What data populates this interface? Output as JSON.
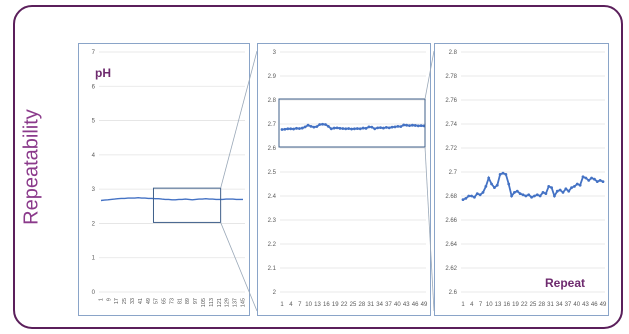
{
  "side_title": "Repeatability",
  "colors": {
    "frame": "#5b1f5b",
    "side_title": "#8b3a8b",
    "line": "#4472c4",
    "panel_border": "#8aa4c8",
    "grid": "#e3e3e3",
    "tick": "#595959",
    "label": "#6e2a6e"
  },
  "chart_data": [
    {
      "type": "line",
      "label": "pH",
      "ylim": [
        0,
        7
      ],
      "yticks": [
        "0",
        "1",
        "2",
        "3",
        "4",
        "5",
        "6",
        "7"
      ],
      "x_tick_labels": [
        "1",
        "9",
        "17",
        "25",
        "33",
        "41",
        "49",
        "57",
        "65",
        "73",
        "81",
        "89",
        "97",
        "105",
        "113",
        "121",
        "129",
        "137",
        "145"
      ],
      "grid": true,
      "series": [
        {
          "values": [
            2.67,
            2.68,
            2.69,
            2.7,
            2.71,
            2.72,
            2.73,
            2.73,
            2.74,
            2.74,
            2.74,
            2.75,
            2.74,
            2.74,
            2.73,
            2.73,
            2.72,
            2.72,
            2.71,
            2.7,
            2.7,
            2.69,
            2.69,
            2.7,
            2.7,
            2.71,
            2.7,
            2.69,
            2.7,
            2.71,
            2.71,
            2.72,
            2.71,
            2.71,
            2.7,
            2.7,
            2.7,
            2.71,
            2.71,
            2.71,
            2.7,
            2.7,
            2.7
          ]
        }
      ]
    },
    {
      "type": "line",
      "ylim": [
        2,
        3
      ],
      "yticks": [
        "2",
        "2.1",
        "2.2",
        "2.3",
        "2.4",
        "2.5",
        "2.6",
        "2.7",
        "2.8",
        "2.9",
        "3"
      ],
      "x_tick_labels": [
        "1",
        "4",
        "7",
        "10",
        "13",
        "16",
        "19",
        "22",
        "25",
        "28",
        "31",
        "34",
        "37",
        "40",
        "43",
        "46",
        "49"
      ],
      "grid": true,
      "series": [
        {
          "values": [
            2.677,
            2.678,
            2.68,
            2.68,
            2.679,
            2.682,
            2.681,
            2.683,
            2.688,
            2.695,
            2.69,
            2.687,
            2.689,
            2.698,
            2.699,
            2.698,
            2.69,
            2.68,
            2.683,
            2.684,
            2.682,
            2.681,
            2.68,
            2.681,
            2.679,
            2.68,
            2.681,
            2.68,
            2.683,
            2.682,
            2.688,
            2.687,
            2.68,
            2.684,
            2.685,
            2.683,
            2.686,
            2.684,
            2.687,
            2.688,
            2.69,
            2.689,
            2.696,
            2.695,
            2.693,
            2.695,
            2.694,
            2.692,
            2.693,
            2.692
          ]
        }
      ]
    },
    {
      "type": "line",
      "label": "Repeat",
      "ylim": [
        2.6,
        2.8
      ],
      "yticks": [
        "2.6",
        "2.62",
        "2.64",
        "2.66",
        "2.68",
        "2.7",
        "2.72",
        "2.74",
        "2.76",
        "2.78",
        "2.8"
      ],
      "x_tick_labels": [
        "1",
        "4",
        "7",
        "10",
        "13",
        "16",
        "19",
        "22",
        "25",
        "28",
        "31",
        "34",
        "37",
        "40",
        "43",
        "46",
        "49"
      ],
      "grid": true,
      "series": [
        {
          "values": [
            2.677,
            2.678,
            2.68,
            2.68,
            2.679,
            2.682,
            2.681,
            2.683,
            2.688,
            2.695,
            2.69,
            2.687,
            2.689,
            2.698,
            2.699,
            2.698,
            2.69,
            2.68,
            2.683,
            2.684,
            2.682,
            2.681,
            2.68,
            2.681,
            2.679,
            2.68,
            2.681,
            2.68,
            2.683,
            2.682,
            2.688,
            2.687,
            2.68,
            2.684,
            2.685,
            2.683,
            2.686,
            2.684,
            2.687,
            2.688,
            2.69,
            2.689,
            2.696,
            2.695,
            2.693,
            2.695,
            2.694,
            2.692,
            2.693,
            2.692
          ]
        }
      ]
    }
  ]
}
